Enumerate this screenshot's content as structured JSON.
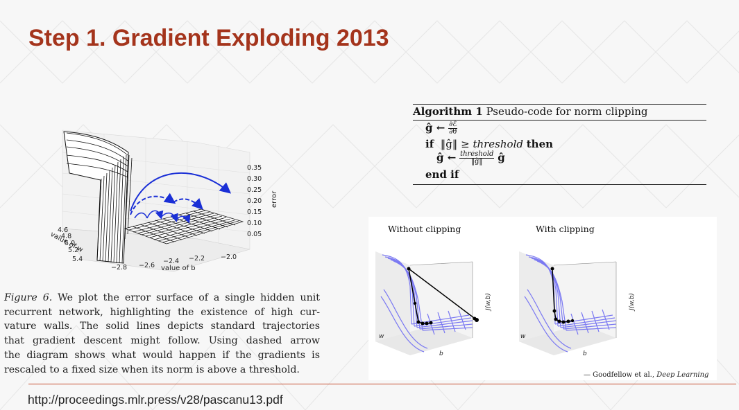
{
  "slide": {
    "title": "Step 1. Gradient Exploding 2013",
    "url": "http://proceedings.mlr.press/v28/pascanu13.pdf",
    "accent_color": "#a4341c"
  },
  "figure6": {
    "z_axis_label": "error",
    "z_ticks": [
      "0.35",
      "0.30",
      "0.25",
      "0.20",
      "0.15",
      "0.10",
      "0.05"
    ],
    "w_axis_label": "value of w",
    "w_ticks": [
      "4.6",
      "4.8",
      "5.0",
      "5.2",
      "5.4"
    ],
    "b_axis_label": "value of b",
    "b_ticks": [
      "−2.8",
      "−2.6",
      "−2.4",
      "−2.2",
      "−2.0"
    ],
    "trajectory_color": "#1a2fd6",
    "caption_label": "Figure 6.",
    "caption_lines": [
      " We plot the error surface of a single hidden unit",
      "recurrent network, highlighting the existence of high cur-",
      "vature walls. The solid lines depicts standard trajectories",
      "that gradient descent might follow. Using dashed arrow",
      "the diagram shows what would happen if the gradients is",
      "rescaled to a fixed size when its norm is above a threshold."
    ]
  },
  "algorithm": {
    "label": "Algorithm 1",
    "title": "Pseudo-code for norm clipping",
    "line1_lhs": "ĝ ←",
    "line1_num": "∂ℰ",
    "line1_den": "∂θ",
    "line2_if": "if",
    "line2_cond": "‖ĝ‖ ≥",
    "line2_thr": "threshold",
    "line2_then": "then",
    "line3_lhs": "ĝ ←",
    "line3_num": "threshold",
    "line3_den": "‖ĝ‖",
    "line3_rhs": "ĝ",
    "line4": "end if"
  },
  "clipping_figure": {
    "left_title": "Without clipping",
    "right_title": "With clipping",
    "axis_j": "J(w,b)",
    "axis_w": "w",
    "axis_b": "b",
    "surface_color": "#7b79f2",
    "credit_prefix": "— Goodfellow et al., ",
    "credit_book": "Deep Learning"
  }
}
